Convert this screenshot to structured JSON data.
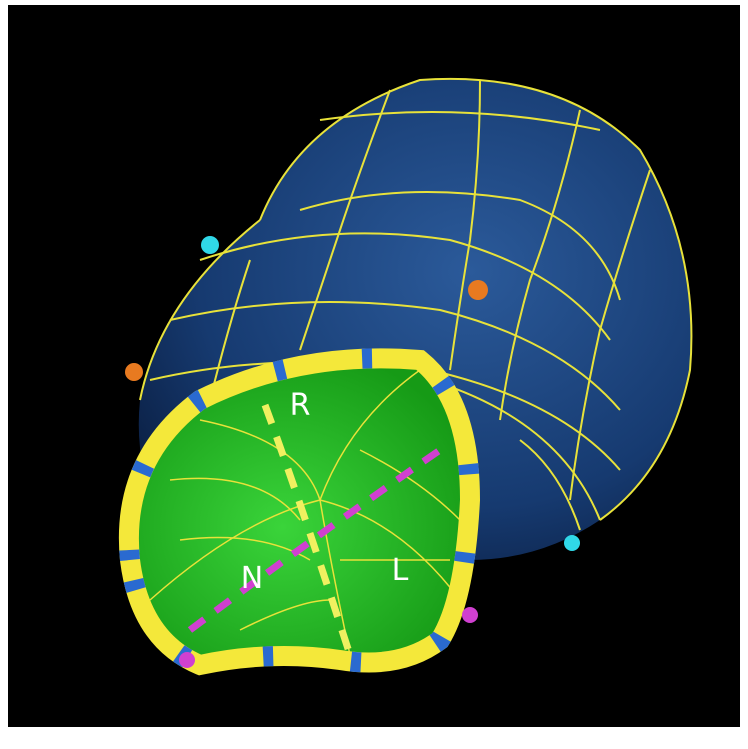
{
  "labels": {
    "r": "R",
    "n": "N",
    "l": "L"
  }
}
